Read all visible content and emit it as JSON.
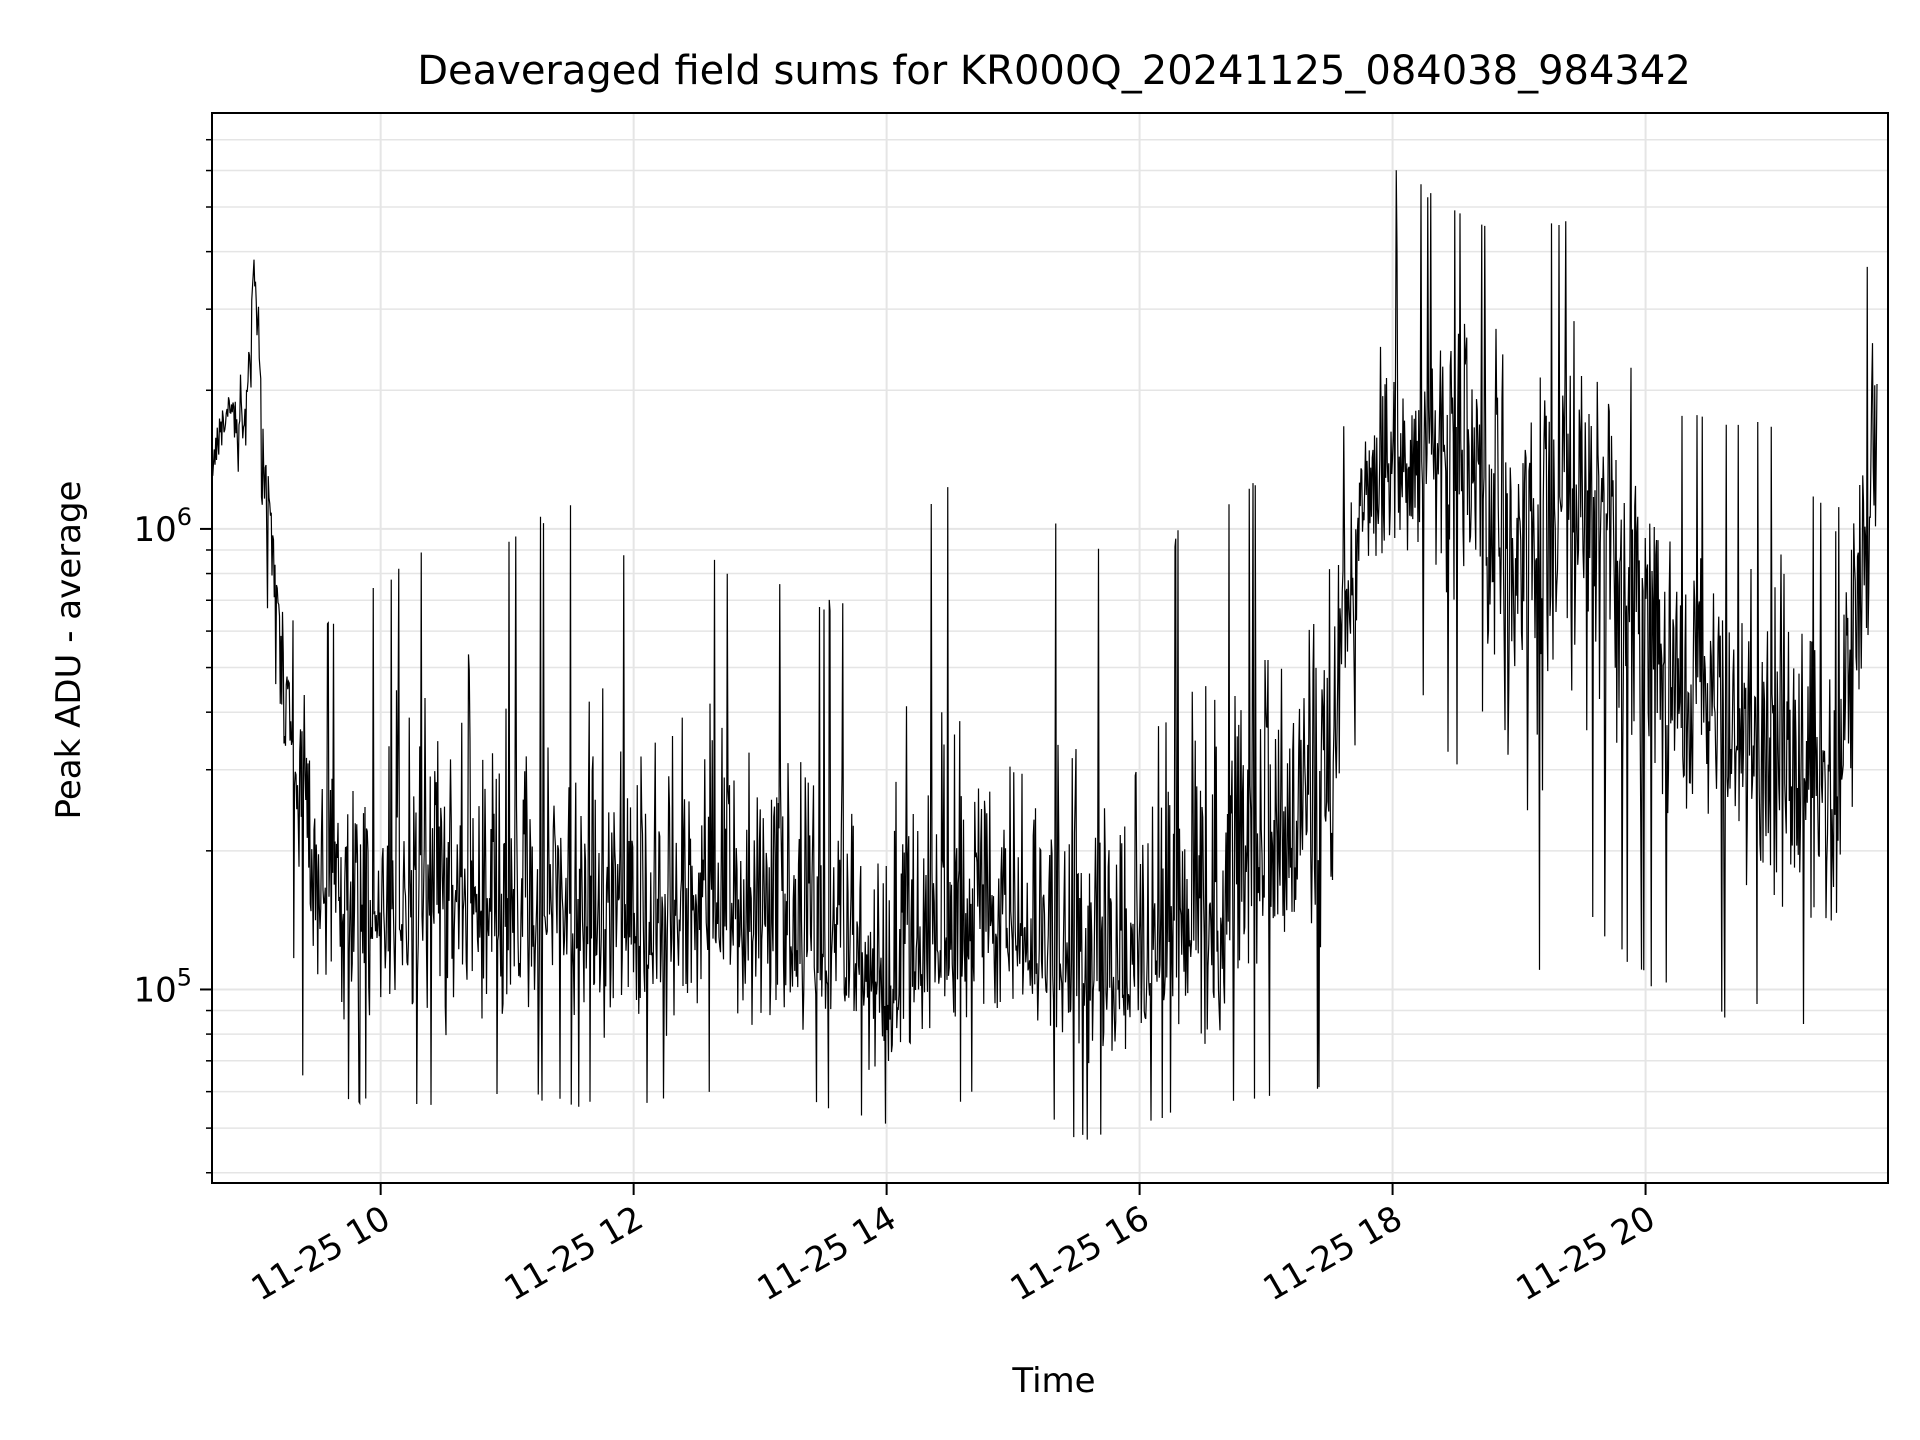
{
  "chart_data": {
    "type": "line",
    "title": "Deaveraged field sums for KR000Q_20241125_084038_984342",
    "xlabel": "Time",
    "ylabel": "Peak ADU - average",
    "x_ticks": [
      {
        "value": "2024-11-25T10:00",
        "label": "11-25 10"
      },
      {
        "value": "2024-11-25T12:00",
        "label": "11-25 12"
      },
      {
        "value": "2024-11-25T14:00",
        "label": "11-25 14"
      },
      {
        "value": "2024-11-25T16:00",
        "label": "11-25 16"
      },
      {
        "value": "2024-11-25T18:00",
        "label": "11-25 18"
      },
      {
        "value": "2024-11-25T20:00",
        "label": "11-25 20"
      }
    ],
    "y_ticks": [
      {
        "value": 100000,
        "base": "10",
        "exp": "5"
      },
      {
        "value": 1000000,
        "base": "10",
        "exp": "6"
      }
    ],
    "xlim": [
      "2024-11-25T08:40",
      "2024-11-25T21:55"
    ],
    "ylim": [
      38000,
      8000000
    ],
    "yscale": "log",
    "grid": true,
    "line_color": "#000000",
    "grid_color": "#e5e5e5",
    "series": [
      {
        "x": [
          "2024-11-25T08:40",
          "2024-11-25T08:48",
          "2024-11-25T08:56",
          "2024-11-25T09:00",
          "2024-11-25T09:04",
          "2024-11-25T09:10",
          "2024-11-25T09:20",
          "2024-11-25T09:30",
          "2024-11-25T10:00",
          "2024-11-25T10:30",
          "2024-11-25T11:00",
          "2024-11-25T11:30",
          "2024-11-25T12:00",
          "2024-11-25T12:30",
          "2024-11-25T13:00",
          "2024-11-25T13:30",
          "2024-11-25T14:00",
          "2024-11-25T14:30",
          "2024-11-25T15:00",
          "2024-11-25T15:30",
          "2024-11-25T16:00",
          "2024-11-25T16:30",
          "2024-11-25T17:00",
          "2024-11-25T17:30",
          "2024-11-25T17:45",
          "2024-11-25T18:00",
          "2024-11-25T18:30",
          "2024-11-25T19:00",
          "2024-11-25T19:30",
          "2024-11-25T20:00",
          "2024-11-25T20:30",
          "2024-11-25T21:00",
          "2024-11-25T21:30",
          "2024-11-25T21:50"
        ],
        "values": [
          1300000,
          1900000,
          1700000,
          3900000,
          1700000,
          800000,
          250000,
          170000,
          150000,
          170000,
          140000,
          150000,
          130000,
          150000,
          140000,
          130000,
          100000,
          140000,
          140000,
          110000,
          110000,
          140000,
          200000,
          300000,
          1000000,
          1300000,
          1500000,
          800000,
          1200000,
          700000,
          400000,
          350000,
          250000,
          1500000
        ],
        "range_low": [
          1200000,
          1500000,
          1200000,
          1500000,
          1100000,
          300000,
          65000,
          60000,
          55000,
          55000,
          60000,
          55000,
          55000,
          60000,
          55000,
          55000,
          50000,
          55000,
          65000,
          46000,
          50000,
          55000,
          55000,
          60000,
          500000,
          600000,
          300000,
          95000,
          140000,
          100000,
          85000,
          90000,
          70000,
          600000
        ],
        "range_high": [
          1900000,
          2100000,
          2200000,
          3900000,
          2400000,
          900000,
          600000,
          600000,
          800000,
          1050000,
          1000000,
          1250000,
          900000,
          900000,
          800000,
          700000,
          800000,
          1400000,
          1400000,
          1000000,
          1000000,
          1000000,
          1400000,
          1400000,
          2300000,
          6500000,
          5000000,
          4500000,
          5000000,
          1800000,
          1800000,
          1800000,
          1000000,
          5800000
        ]
      }
    ]
  }
}
